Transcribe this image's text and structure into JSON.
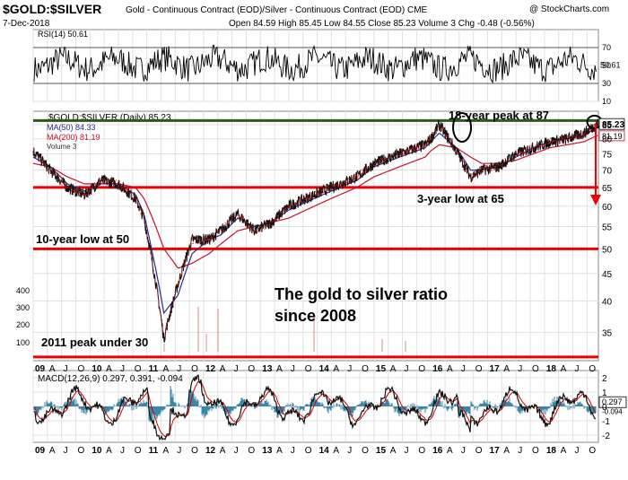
{
  "header": {
    "symbol": "$GOLD:$SILVER",
    "description": "Gold - Continuous Contract (EOD)/Silver - Continuous Contract (EOD) CME",
    "date": "7-Dec-2018",
    "ohlc": "Open 84.59  High 85.45  Low 84.55  Close 85.23  Volume 3  Chg -0.48 (-0.56%)",
    "credit": "@ StockCharts.com"
  },
  "colors": {
    "price": "#111111",
    "ma50": "#2a2a8a",
    "ma200": "#c8102e",
    "annotation": "#ee0000",
    "macd": "#111111",
    "macd_signal": "#cc0000",
    "macd_hist": "#3a87a8",
    "grid": "#e0e0e0",
    "peak_line": "#2d5a1b"
  },
  "chart_data": [
    {
      "type": "line",
      "panel": "rsi",
      "legend": "RSI(14) 50.61",
      "ylim": [
        10,
        90
      ],
      "y_ticks": [
        "70",
        "50",
        "30",
        "10"
      ],
      "last_value": "50.61",
      "reference_lines": [
        70,
        30
      ]
    },
    {
      "type": "line",
      "panel": "price",
      "legend": [
        "$GOLD:$SILVER (Daily) 85.23",
        "MA(50) 84.33",
        "MA(200) 81.19",
        "Volume 3"
      ],
      "y_scale": "log",
      "ylim": [
        31,
        90
      ],
      "y_ticks": [
        "85",
        "80",
        "75",
        "70",
        "65",
        "60",
        "55",
        "50",
        "45",
        "40",
        "35"
      ],
      "volume_ticks": [
        "400",
        "300",
        "200",
        "100"
      ],
      "x_ticks": [
        "09",
        "A",
        "J",
        "O",
        "10",
        "A",
        "J",
        "O",
        "11",
        "A",
        "J",
        "O",
        "12",
        "A",
        "J",
        "O",
        "13",
        "A",
        "J",
        "O",
        "14",
        "A",
        "J",
        "O",
        "15",
        "A",
        "J",
        "O",
        "16",
        "A",
        "J",
        "O",
        "17",
        "A",
        "J",
        "O",
        "18",
        "A",
        "J",
        "O"
      ],
      "last_labels": [
        "85.23",
        "81.19"
      ],
      "x": [
        2009.0,
        2009.3,
        2009.6,
        2009.9,
        2010.2,
        2010.5,
        2010.8,
        2010.95,
        2011.1,
        2011.3,
        2011.55,
        2011.8,
        2012.1,
        2012.3,
        2012.6,
        2012.9,
        2013.2,
        2013.5,
        2013.8,
        2014.1,
        2014.4,
        2014.7,
        2015.0,
        2015.3,
        2015.6,
        2015.9,
        2016.0,
        2016.15,
        2016.45,
        2016.7,
        2016.9,
        2017.2,
        2017.5,
        2017.8,
        2018.1,
        2018.4,
        2018.7,
        2018.93
      ],
      "series": [
        {
          "values": [
            76,
            70,
            65,
            63,
            67,
            66,
            62,
            57,
            47,
            34,
            43,
            52,
            52,
            54,
            58,
            54,
            56,
            60,
            62,
            64,
            66,
            68,
            72,
            74,
            76,
            78,
            80,
            85,
            76,
            68,
            70,
            71,
            75,
            77,
            79,
            80,
            82,
            85.23
          ]
        },
        {
          "values": [
            74,
            71,
            66,
            64,
            66,
            66,
            63,
            58,
            49,
            38,
            41,
            49,
            52,
            53,
            57,
            55,
            56,
            59,
            61,
            63,
            65,
            67,
            71,
            73,
            75,
            77,
            79,
            82,
            77,
            70,
            70,
            71,
            74,
            77,
            79,
            80,
            81,
            84.33
          ]
        },
        {
          "values": [
            72,
            71,
            68,
            66,
            66,
            66,
            65,
            62,
            57,
            50,
            46,
            47,
            49,
            51,
            54,
            55,
            56,
            57,
            59,
            61,
            63,
            65,
            68,
            70,
            72,
            74,
            76,
            78,
            77,
            74,
            72,
            72,
            73,
            75,
            77,
            78,
            79,
            81.19
          ]
        }
      ],
      "reference_lines": [
        {
          "value": 86.5,
          "color": "peak"
        },
        {
          "value": 65,
          "color": "red"
        },
        {
          "value": 50,
          "color": "red"
        },
        {
          "value": 31.5,
          "color": "red"
        }
      ],
      "annotations": [
        "18-year peak at 87",
        "3-year low at 65",
        "10-year low at 50",
        "2011 peak under 30",
        "The gold to silver ratio",
        "since 2008"
      ]
    },
    {
      "type": "line",
      "panel": "macd",
      "legend": "MACD(12,26,9) 0.297, 0.391, -0.094",
      "ylim": [
        -2.5,
        2.5
      ],
      "y_ticks": [
        "2",
        "1",
        "0",
        "-1",
        "-2"
      ],
      "last_values": [
        "0.297",
        "-0.094"
      ],
      "x_ticks": [
        "09",
        "A",
        "J",
        "O",
        "10",
        "A",
        "J",
        "O",
        "11",
        "A",
        "J",
        "O",
        "12",
        "A",
        "J",
        "O",
        "13",
        "A",
        "J",
        "O",
        "14",
        "A",
        "J",
        "O",
        "15",
        "A",
        "J",
        "O",
        "16",
        "A",
        "J",
        "O",
        "17",
        "A",
        "J",
        "O",
        "18",
        "A",
        "J",
        "O"
      ]
    }
  ]
}
